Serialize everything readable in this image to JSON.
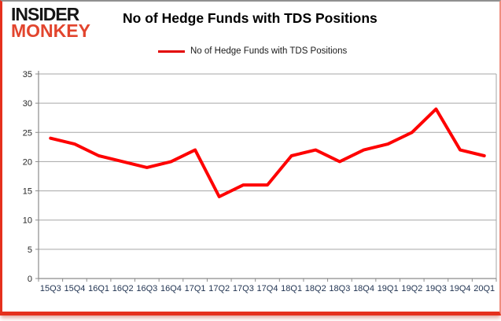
{
  "logo": {
    "line1": "INSIDER",
    "line2": "MONKEY"
  },
  "header": {
    "title": "No of Hedge Funds with TDS Positions"
  },
  "legend": {
    "label": "No of Hedge Funds with TDS Positions"
  },
  "colors": {
    "line": "#fe0000",
    "grid": "#a6a6a6",
    "axis": "#8c8c8c",
    "y_label": "#262626",
    "x_label": "#1f3250",
    "border_red": "#e5301d"
  },
  "chart_data": {
    "type": "line",
    "title": "No of Hedge Funds with TDS Positions",
    "categories": [
      "15Q3",
      "15Q4",
      "16Q1",
      "16Q2",
      "16Q3",
      "16Q4",
      "17Q1",
      "17Q2",
      "17Q3",
      "17Q4",
      "18Q1",
      "18Q2",
      "18Q3",
      "18Q4",
      "19Q1",
      "19Q2",
      "19Q3",
      "19Q4",
      "20Q1"
    ],
    "values": [
      24,
      23,
      21,
      20,
      19,
      20,
      22,
      14,
      16,
      16,
      21,
      22,
      20,
      22,
      23,
      25,
      29,
      22,
      21
    ],
    "xlabel": "",
    "ylabel": "",
    "ylim": [
      0,
      35
    ],
    "ytick_step": 5,
    "grid": true,
    "legend_position": "top-center",
    "line_width": 4
  }
}
